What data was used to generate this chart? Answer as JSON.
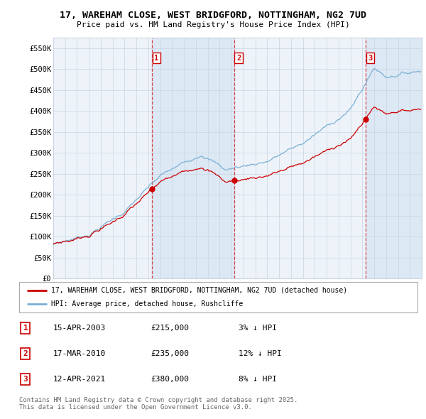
{
  "title": "17, WAREHAM CLOSE, WEST BRIDGFORD, NOTTINGHAM, NG2 7UD",
  "subtitle": "Price paid vs. HM Land Registry's House Price Index (HPI)",
  "ylim": [
    0,
    575000
  ],
  "yticks": [
    0,
    50000,
    100000,
    150000,
    200000,
    250000,
    300000,
    350000,
    400000,
    450000,
    500000,
    550000
  ],
  "ytick_labels": [
    "£0",
    "£50K",
    "£100K",
    "£150K",
    "£200K",
    "£250K",
    "£300K",
    "£350K",
    "£400K",
    "£450K",
    "£500K",
    "£550K"
  ],
  "xlim_start": 1995.0,
  "xlim_end": 2026.0,
  "sale_dates": [
    2003.29,
    2010.21,
    2021.29
  ],
  "sale_prices": [
    215000,
    235000,
    380000
  ],
  "sale_labels": [
    "1",
    "2",
    "3"
  ],
  "sale_info": [
    {
      "num": "1",
      "date": "15-APR-2003",
      "price": "£215,000",
      "hpi": "3% ↓ HPI"
    },
    {
      "num": "2",
      "date": "17-MAR-2010",
      "price": "£235,000",
      "hpi": "12% ↓ HPI"
    },
    {
      "num": "3",
      "date": "12-APR-2021",
      "price": "£380,000",
      "hpi": "8% ↓ HPI"
    }
  ],
  "red_line_color": "#cc0000",
  "blue_line_color": "#7ab0d4",
  "shade_color": "#dde8f5",
  "background_color": "#eef3fa",
  "plot_bg_color": "#ffffff",
  "grid_color": "#c8d4e0",
  "legend_label_red": "17, WAREHAM CLOSE, WEST BRIDGFORD, NOTTINGHAM, NG2 7UD (detached house)",
  "legend_label_blue": "HPI: Average price, detached house, Rushcliffe",
  "footer": "Contains HM Land Registry data © Crown copyright and database right 2025.\nThis data is licensed under the Open Government Licence v3.0."
}
